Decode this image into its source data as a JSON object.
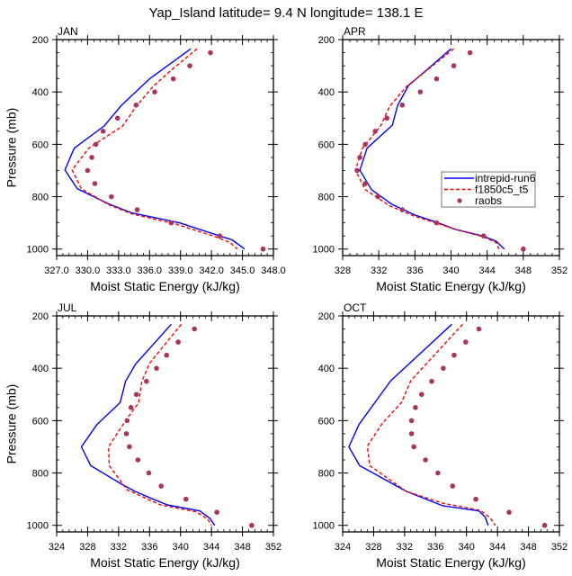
{
  "chart_data": {
    "type": "line",
    "title": "Yap_Island  latitude= 9.4 N longitude= 138.1 E",
    "legend": {
      "placement": "inside-right (APR panel)",
      "entries": [
        {
          "label": "intrepid-run6",
          "color": "#0000ff",
          "style": "solid"
        },
        {
          "label": "f1850c5_t5",
          "color": "#ff0000",
          "style": "dashed"
        },
        {
          "label": "raobs",
          "color": "#a8345f",
          "style": "marker"
        }
      ]
    },
    "panels": [
      {
        "month": "JAN",
        "xlabel": "Moist Static Energy (kJ/kg)",
        "ylabel": "Pressure (mb)",
        "xlim": [
          327,
          348
        ],
        "ylim": [
          1025,
          200
        ],
        "xticks": [
          "327.0",
          "330.0",
          "333.0",
          "336.0",
          "339.0",
          "342.0",
          "345.0",
          "348.0"
        ],
        "xtick_values": [
          327,
          330,
          333,
          336,
          339,
          342,
          345,
          348
        ],
        "yticks": [
          "200",
          "400",
          "600",
          "800",
          "1000"
        ],
        "ytick_values": [
          200,
          400,
          600,
          800,
          1000
        ],
        "series": [
          {
            "name": "intrepid-run6",
            "points": [
              [
                340.0,
                235
              ],
              [
                336.0,
                350
              ],
              [
                333.3,
                450
              ],
              [
                331.6,
                530
              ],
              [
                328.7,
                615
              ],
              [
                327.8,
                698
              ],
              [
                329.0,
                770
              ],
              [
                332.0,
                827
              ],
              [
                334.3,
                862
              ],
              [
                338.9,
                900
              ],
              [
                342.8,
                950
              ],
              [
                344.0,
                965
              ],
              [
                345.2,
                1000
              ]
            ]
          },
          {
            "name": "f1850c5_t5",
            "points": [
              [
                340.6,
                235
              ],
              [
                338.0,
                320
              ],
              [
                336.3,
                381
              ],
              [
                334.7,
                455
              ],
              [
                333.4,
                530
              ],
              [
                330.1,
                615
              ],
              [
                328.5,
                698
              ],
              [
                329.4,
                770
              ],
              [
                332.0,
                830
              ],
              [
                334.3,
                866
              ],
              [
                338.6,
                905
              ],
              [
                342.4,
                953
              ],
              [
                343.8,
                975
              ],
              [
                344.5,
                1000
              ]
            ]
          },
          {
            "name": "raobs",
            "points": [
              [
                341.9,
                250
              ],
              [
                339.9,
                300
              ],
              [
                338.3,
                350
              ],
              [
                336.5,
                400
              ],
              [
                334.7,
                450
              ],
              [
                332.9,
                500
              ],
              [
                331.5,
                550
              ],
              [
                330.8,
                600
              ],
              [
                330.4,
                650
              ],
              [
                330.0,
                700
              ],
              [
                330.7,
                750
              ],
              [
                332.3,
                800
              ],
              [
                334.8,
                850
              ],
              [
                338.1,
                900
              ],
              [
                342.8,
                950
              ],
              [
                347.0,
                1000
              ]
            ]
          }
        ]
      },
      {
        "month": "APR",
        "xlabel": "Moist Static Energy (kJ/kg)",
        "ylabel": "",
        "xlim": [
          328,
          352
        ],
        "ylim": [
          1025,
          200
        ],
        "xticks": [
          "328",
          "332",
          "336",
          "340",
          "344",
          "348",
          "352"
        ],
        "xtick_values": [
          328,
          332,
          336,
          340,
          344,
          348,
          352
        ],
        "yticks": [
          "200",
          "400",
          "600",
          "800",
          "1000"
        ],
        "ytick_values": [
          200,
          400,
          600,
          800,
          1000
        ],
        "series": [
          {
            "name": "intrepid-run6",
            "points": [
              [
                340.0,
                235
              ],
              [
                337.5,
                310
              ],
              [
                335.3,
                375
              ],
              [
                334.1,
                450
              ],
              [
                333.5,
                527
              ],
              [
                330.7,
                615
              ],
              [
                329.9,
                699
              ],
              [
                331.2,
                773
              ],
              [
                333.5,
                830
              ],
              [
                336.0,
                870
              ],
              [
                338.6,
                900
              ],
              [
                340.5,
                925
              ],
              [
                343.5,
                950
              ],
              [
                345.0,
                970
              ],
              [
                345.9,
                1000
              ]
            ]
          },
          {
            "name": "f1850c5_t5",
            "points": [
              [
                340.3,
                235
              ],
              [
                337.6,
                310
              ],
              [
                335.1,
                378
              ],
              [
                333.2,
                455
              ],
              [
                332.2,
                530
              ],
              [
                330.2,
                615
              ],
              [
                329.4,
                698
              ],
              [
                330.5,
                773
              ],
              [
                333.2,
                835
              ],
              [
                336.0,
                875
              ],
              [
                338.6,
                903
              ],
              [
                340.5,
                925
              ],
              [
                343.5,
                952
              ],
              [
                345.0,
                975
              ],
              [
                345.3,
                1000
              ]
            ]
          },
          {
            "name": "raobs",
            "points": [
              [
                342.1,
                250
              ],
              [
                340.3,
                300
              ],
              [
                338.4,
                350
              ],
              [
                336.6,
                400
              ],
              [
                334.6,
                450
              ],
              [
                332.9,
                500
              ],
              [
                331.6,
                550
              ],
              [
                330.5,
                600
              ],
              [
                329.9,
                650
              ],
              [
                329.6,
                700
              ],
              [
                330.5,
                750
              ],
              [
                331.9,
                800
              ],
              [
                334.6,
                850
              ],
              [
                338.4,
                900
              ],
              [
                343.6,
                950
              ],
              [
                348.0,
                1000
              ]
            ]
          }
        ]
      },
      {
        "month": "JUL",
        "xlabel": "Moist Static Energy (kJ/kg)",
        "ylabel": "Pressure (mb)",
        "xlim": [
          324,
          352
        ],
        "ylim": [
          1025,
          200
        ],
        "xticks": [
          "324",
          "328",
          "332",
          "336",
          "340",
          "344",
          "348",
          "352"
        ],
        "xtick_values": [
          324,
          328,
          332,
          336,
          340,
          344,
          348,
          352
        ],
        "yticks": [
          "200",
          "400",
          "600",
          "800",
          "1000"
        ],
        "ytick_values": [
          200,
          400,
          600,
          800,
          1000
        ],
        "series": [
          {
            "name": "intrepid-run6",
            "points": [
              [
                338.8,
                232
              ],
              [
                334.2,
                384
              ],
              [
                332.9,
                450
              ],
              [
                332.2,
                531
              ],
              [
                329.2,
                615
              ],
              [
                327.2,
                700
              ],
              [
                328.4,
                772
              ],
              [
                332.3,
                841
              ],
              [
                334.1,
                870
              ],
              [
                336.6,
                902
              ],
              [
                338.3,
                922
              ],
              [
                342.5,
                945
              ],
              [
                343.8,
                973
              ],
              [
                344.4,
                1000
              ]
            ]
          },
          {
            "name": "f1850c5_t5",
            "points": [
              [
                340.1,
                232
              ],
              [
                336.0,
                381
              ],
              [
                335.0,
                450
              ],
              [
                334.6,
                531
              ],
              [
                332.9,
                600
              ],
              [
                330.7,
                700
              ],
              [
                330.8,
                772
              ],
              [
                333.1,
                864
              ],
              [
                337.4,
                922
              ],
              [
                342.0,
                948
              ],
              [
                343.5,
                975
              ],
              [
                344.0,
                1000
              ]
            ]
          },
          {
            "name": "raobs",
            "points": [
              [
                341.8,
                250
              ],
              [
                339.7,
                300
              ],
              [
                338.2,
                350
              ],
              [
                336.9,
                400
              ],
              [
                335.6,
                450
              ],
              [
                334.3,
                500
              ],
              [
                333.6,
                550
              ],
              [
                333.1,
                600
              ],
              [
                333.0,
                650
              ],
              [
                333.4,
                700
              ],
              [
                334.5,
                750
              ],
              [
                335.9,
                800
              ],
              [
                337.5,
                850
              ],
              [
                340.7,
                900
              ],
              [
                344.7,
                950
              ],
              [
                349.2,
                1000
              ]
            ]
          }
        ]
      },
      {
        "month": "OCT",
        "xlabel": "Moist Static Energy (kJ/kg)",
        "ylabel": "",
        "xlim": [
          324,
          352
        ],
        "ylim": [
          1025,
          200
        ],
        "xticks": [
          "324",
          "328",
          "332",
          "336",
          "340",
          "344",
          "348",
          "352"
        ],
        "xtick_values": [
          324,
          328,
          332,
          336,
          340,
          344,
          348,
          352
        ],
        "yticks": [
          "200",
          "400",
          "600",
          "800",
          "1000"
        ],
        "ytick_values": [
          200,
          400,
          600,
          800,
          1000
        ],
        "series": [
          {
            "name": "intrepid-run6",
            "points": [
              [
                338.1,
                232
              ],
              [
                330.2,
                448
              ],
              [
                326.1,
                615
              ],
              [
                324.8,
                700
              ],
              [
                326.2,
                772
              ],
              [
                332.2,
                870
              ],
              [
                336.9,
                925
              ],
              [
                341.6,
                945
              ],
              [
                342.4,
                968
              ],
              [
                342.8,
                1000
              ]
            ]
          },
          {
            "name": "f1850c5_t5",
            "points": [
              [
                339.5,
                232
              ],
              [
                332.8,
                448
              ],
              [
                331.6,
                531
              ],
              [
                329.1,
                611
              ],
              [
                327.2,
                697
              ],
              [
                327.5,
                772
              ],
              [
                332.2,
                870
              ],
              [
                337.0,
                916
              ],
              [
                341.8,
                943
              ],
              [
                343.1,
                973
              ],
              [
                343.7,
                1000
              ]
            ]
          },
          {
            "name": "raobs",
            "points": [
              [
                341.6,
                250
              ],
              [
                339.9,
                300
              ],
              [
                338.4,
                350
              ],
              [
                337.0,
                400
              ],
              [
                335.5,
                450
              ],
              [
                334.2,
                500
              ],
              [
                333.4,
                550
              ],
              [
                332.9,
                600
              ],
              [
                332.9,
                650
              ],
              [
                333.2,
                700
              ],
              [
                334.7,
                750
              ],
              [
                336.3,
                800
              ],
              [
                338.2,
                850
              ],
              [
                341.2,
                900
              ],
              [
                345.5,
                950
              ],
              [
                350.1,
                1000
              ]
            ]
          }
        ]
      }
    ]
  }
}
